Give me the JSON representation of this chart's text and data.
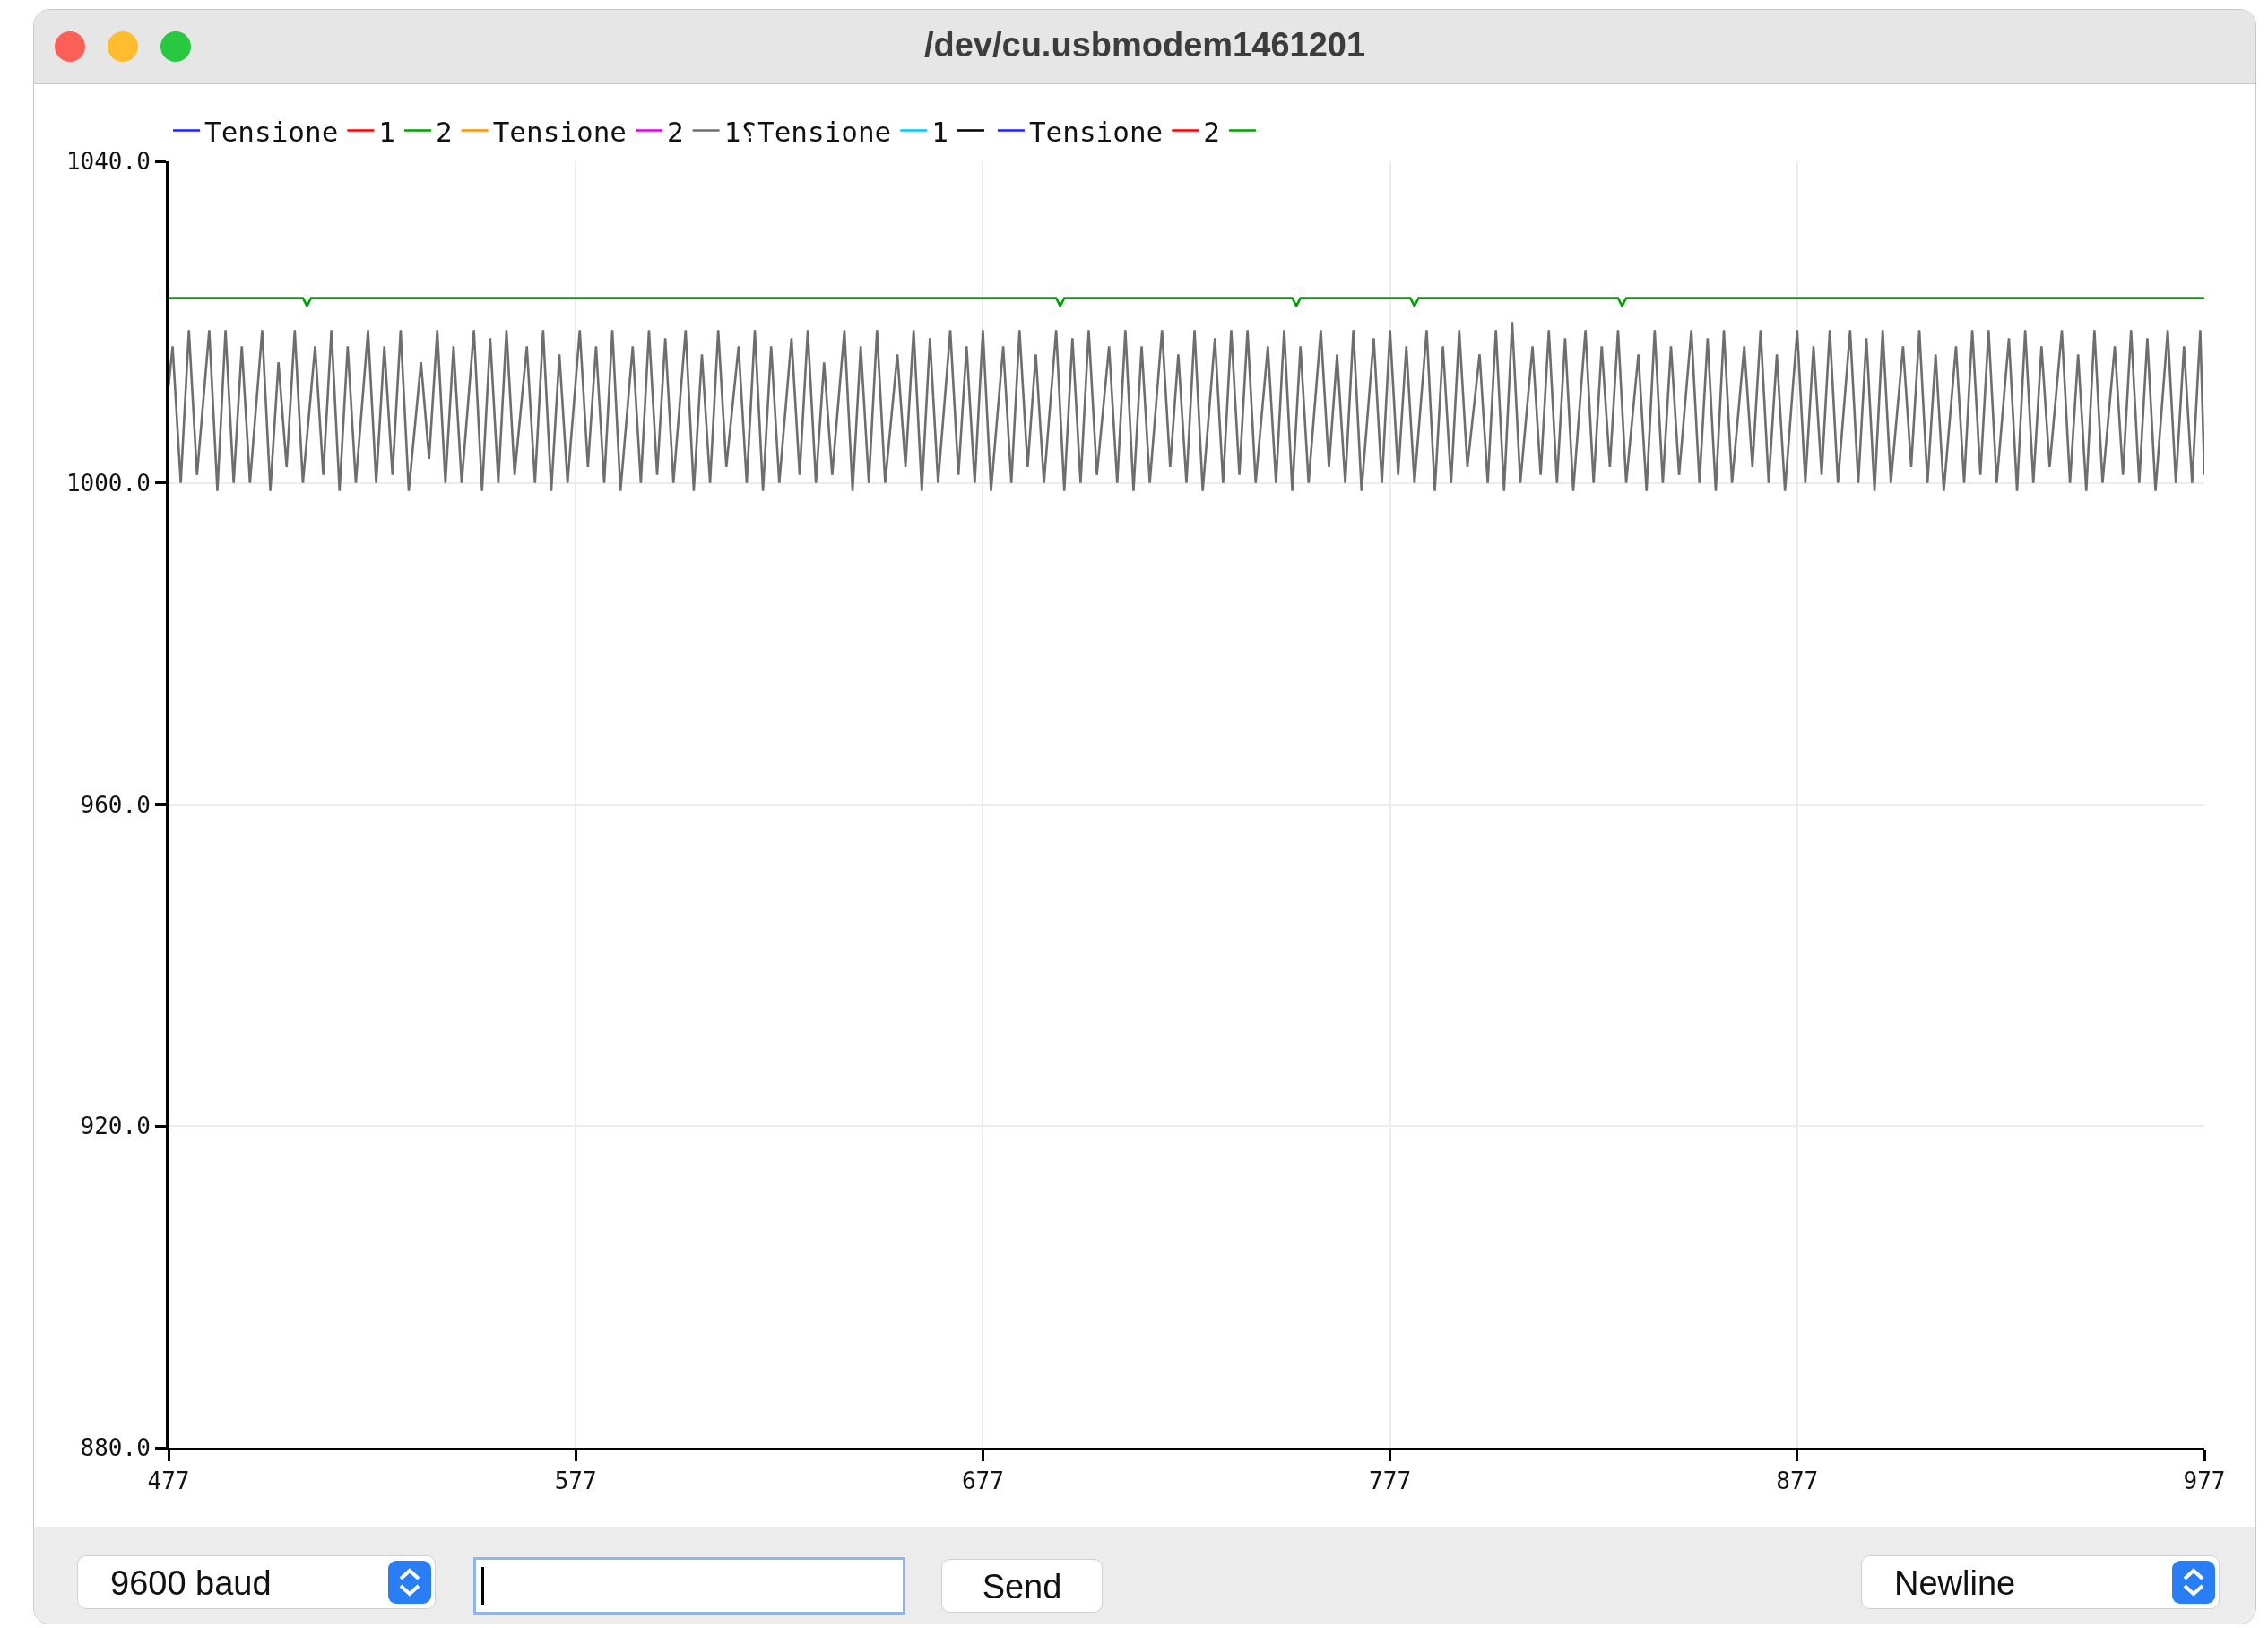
{
  "chart_data": {
    "type": "line",
    "title": "/dev/cu.usbmodem1461201",
    "annotations": [
      "9600 baud",
      "Send",
      "Newline"
    ],
    "ylim": [
      880,
      1040
    ],
    "yticks": [
      {
        "value": 880,
        "label": "880.0"
      },
      {
        "value": 920,
        "label": "920.0"
      },
      {
        "value": 960,
        "label": "960.0"
      },
      {
        "value": 1000,
        "label": "1000.0"
      },
      {
        "value": 1040,
        "label": "1040.0"
      }
    ],
    "xlim": [
      477,
      977
    ],
    "xticks": [
      477,
      577,
      677,
      777,
      877,
      977
    ],
    "grid": true,
    "legend": "top left",
    "marker": "none",
    "line_style": "solid",
    "series": [
      {
        "name": "Tensione",
        "color": "#1f1fff"
      },
      {
        "name": "1",
        "color": "#ff0000"
      },
      {
        "name": "2",
        "color": "#00a000",
        "x": [
          477,
          510,
          511,
          512,
          695,
          696,
          697,
          753,
          754,
          755,
          782,
          783,
          784,
          833,
          834,
          835,
          977
        ],
        "values": [
          1023,
          1023,
          1022,
          1023,
          1023,
          1022,
          1023,
          1023,
          1022,
          1023,
          1023,
          1022,
          1023,
          1023,
          1022,
          1023,
          1023
        ]
      },
      {
        "name": "Tensione",
        "color": "#ff9300"
      },
      {
        "name": "2",
        "color": "#e000e0"
      },
      {
        "name": "1⸮Tensione",
        "color": "#6e6e6e",
        "x": [
          477,
          478,
          480,
          482,
          484,
          487,
          489,
          491,
          493,
          495,
          497,
          500,
          502,
          504,
          506,
          508,
          510,
          513,
          515,
          517,
          519,
          521,
          523,
          526,
          528,
          530,
          532,
          534,
          536,
          539,
          541,
          543,
          545,
          547,
          549,
          552,
          554,
          556,
          558,
          560,
          562,
          565,
          567,
          569,
          571,
          573,
          575,
          578,
          580,
          582,
          584,
          586,
          588,
          591,
          593,
          595,
          597,
          599,
          601,
          604,
          606,
          608,
          610,
          612,
          614,
          617,
          619,
          621,
          623,
          625,
          627,
          630,
          632,
          634,
          636,
          638,
          640,
          643,
          645,
          647,
          649,
          651,
          653,
          656,
          658,
          660,
          662,
          664,
          666,
          669,
          671,
          673,
          675,
          677,
          679,
          682,
          684,
          686,
          688,
          690,
          692,
          695,
          697,
          699,
          701,
          703,
          705,
          708,
          710,
          712,
          714,
          716,
          718,
          721,
          723,
          725,
          727,
          729,
          731,
          734,
          736,
          738,
          740,
          742,
          744,
          747,
          749,
          751,
          753,
          755,
          757,
          760,
          762,
          764,
          766,
          768,
          770,
          773,
          775,
          777,
          779,
          781,
          783,
          786,
          788,
          790,
          792,
          794,
          796,
          799,
          801,
          803,
          805,
          807,
          809,
          812,
          814,
          816,
          818,
          820,
          822,
          825,
          827,
          829,
          831,
          833,
          835,
          838,
          840,
          842,
          844,
          846,
          848,
          851,
          853,
          855,
          857,
          859,
          861,
          864,
          866,
          868,
          870,
          872,
          874,
          877,
          879,
          881,
          883,
          885,
          887,
          890,
          892,
          894,
          896,
          898,
          900,
          903,
          905,
          907,
          909,
          911,
          913,
          916,
          918,
          920,
          922,
          924,
          926,
          929,
          931,
          933,
          935,
          937,
          939,
          942,
          944,
          946,
          948,
          950,
          952,
          955,
          957,
          959,
          961,
          963,
          965,
          968,
          970,
          972,
          974,
          976,
          977
        ],
        "values": [
          1012,
          1017,
          1000,
          1019,
          1001,
          1019,
          999,
          1019,
          1000,
          1017,
          1000,
          1019,
          999,
          1015,
          1002,
          1019,
          1000,
          1017,
          1001,
          1019,
          999,
          1017,
          1000,
          1019,
          1000,
          1017,
          1001,
          1019,
          999,
          1015,
          1003,
          1019,
          1000,
          1017,
          1000,
          1019,
          999,
          1018,
          1000,
          1019,
          1001,
          1017,
          1000,
          1019,
          999,
          1016,
          1000,
          1019,
          1002,
          1017,
          1000,
          1019,
          999,
          1017,
          1000,
          1019,
          1001,
          1018,
          1000,
          1019,
          999,
          1016,
          1000,
          1019,
          1002,
          1017,
          1000,
          1019,
          999,
          1017,
          1000,
          1018,
          1001,
          1019,
          1000,
          1015,
          1001,
          1019,
          999,
          1017,
          1000,
          1019,
          1000,
          1016,
          1002,
          1019,
          999,
          1018,
          1000,
          1019,
          1001,
          1017,
          1000,
          1019,
          999,
          1017,
          1000,
          1019,
          1002,
          1016,
          1000,
          1019,
          999,
          1018,
          1000,
          1019,
          1001,
          1017,
          1000,
          1019,
          999,
          1017,
          1000,
          1019,
          1002,
          1016,
          1000,
          1019,
          999,
          1018,
          1000,
          1019,
          1001,
          1019,
          1000,
          1017,
          1000,
          1019,
          999,
          1017,
          1000,
          1019,
          1002,
          1016,
          1000,
          1019,
          999,
          1018,
          1000,
          1019,
          1001,
          1017,
          1000,
          1019,
          999,
          1017,
          1000,
          1019,
          1002,
          1016,
          1000,
          1019,
          999,
          1020,
          1000,
          1017,
          1001,
          1019,
          1000,
          1018,
          999,
          1019,
          1000,
          1017,
          1002,
          1019,
          1000,
          1016,
          999,
          1019,
          1000,
          1017,
          1001,
          1019,
          1000,
          1018,
          999,
          1019,
          1000,
          1017,
          1002,
          1019,
          1000,
          1016,
          999,
          1019,
          1000,
          1017,
          1001,
          1019,
          1000,
          1019,
          1000,
          1018,
          999,
          1019,
          1000,
          1017,
          1002,
          1019,
          1000,
          1016,
          999,
          1017,
          1000,
          1019,
          1001,
          1019,
          1000,
          1018,
          999,
          1019,
          1000,
          1017,
          1002,
          1019,
          1000,
          1016,
          999,
          1019,
          1000,
          1017,
          1001,
          1019,
          1000,
          1018,
          999,
          1019,
          1000,
          1017,
          1000,
          1019,
          1001
        ]
      },
      {
        "name": "1",
        "color": "#00c8ff"
      },
      {
        "color": "#000000"
      },
      {
        "name": "Tensione",
        "color": "#1f1fff"
      },
      {
        "name": "2",
        "color": "#ff0000"
      },
      {
        "color": "#00a000"
      }
    ]
  }
}
